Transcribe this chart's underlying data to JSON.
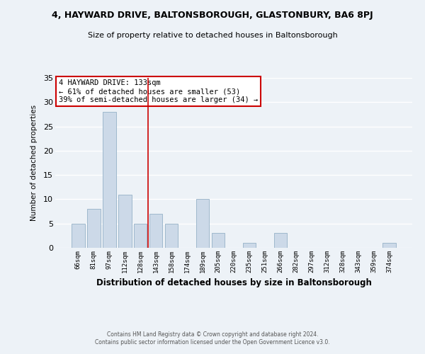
{
  "title": "4, HAYWARD DRIVE, BALTONSBOROUGH, GLASTONBURY, BA6 8PJ",
  "subtitle": "Size of property relative to detached houses in Baltonsborough",
  "xlabel": "Distribution of detached houses by size in Baltonsborough",
  "ylabel": "Number of detached properties",
  "bar_labels": [
    "66sqm",
    "81sqm",
    "97sqm",
    "112sqm",
    "128sqm",
    "143sqm",
    "158sqm",
    "174sqm",
    "189sqm",
    "205sqm",
    "220sqm",
    "235sqm",
    "251sqm",
    "266sqm",
    "282sqm",
    "297sqm",
    "312sqm",
    "328sqm",
    "343sqm",
    "359sqm",
    "374sqm"
  ],
  "bar_values": [
    5,
    8,
    28,
    11,
    5,
    7,
    5,
    0,
    10,
    3,
    0,
    1,
    0,
    3,
    0,
    0,
    0,
    0,
    0,
    0,
    1
  ],
  "bar_color": "#ccd9e8",
  "bar_edge_color": "#9fb8cc",
  "vline_x": 4.5,
  "vline_color": "#cc0000",
  "annotation_title": "4 HAYWARD DRIVE: 133sqm",
  "annotation_line2": "← 61% of detached houses are smaller (53)",
  "annotation_line3": "39% of semi-detached houses are larger (34) →",
  "annotation_box_color": "#ffffff",
  "annotation_box_edge": "#cc0000",
  "ylim": [
    0,
    35
  ],
  "yticks": [
    0,
    5,
    10,
    15,
    20,
    25,
    30,
    35
  ],
  "footer_line1": "Contains HM Land Registry data © Crown copyright and database right 2024.",
  "footer_line2": "Contains public sector information licensed under the Open Government Licence v3.0.",
  "background_color": "#edf2f7",
  "grid_color": "#ffffff"
}
